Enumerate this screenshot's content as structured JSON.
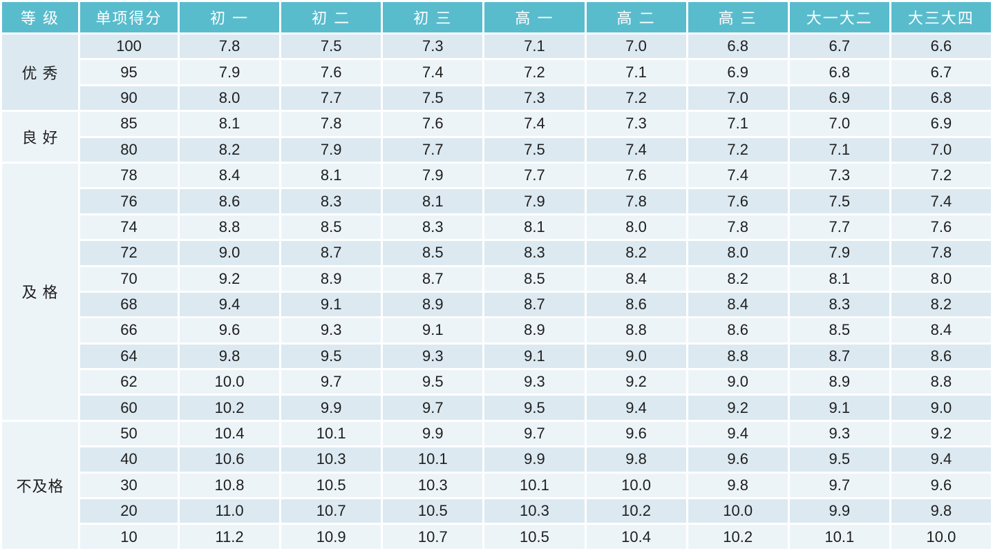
{
  "colors": {
    "header_bg": "#58BCCD",
    "header_text": "#FFFFFF",
    "band_dark": "#DCE9F1",
    "band_light": "#EDF4F8",
    "cell_text": "#1E1E1E"
  },
  "chart_data": {
    "type": "table",
    "columns": [
      "等 级",
      "单项得分",
      "初 一",
      "初 二",
      "初 三",
      "高 一",
      "高 二",
      "高 三",
      "大一大二",
      "大三大四"
    ],
    "groups": [
      {
        "grade": "优 秀",
        "rows": [
          {
            "score": "100",
            "times": [
              "7.8",
              "7.5",
              "7.3",
              "7.1",
              "7.0",
              "6.8",
              "6.7",
              "6.6"
            ]
          },
          {
            "score": "95",
            "times": [
              "7.9",
              "7.6",
              "7.4",
              "7.2",
              "7.1",
              "6.9",
              "6.8",
              "6.7"
            ]
          },
          {
            "score": "90",
            "times": [
              "8.0",
              "7.7",
              "7.5",
              "7.3",
              "7.2",
              "7.0",
              "6.9",
              "6.8"
            ]
          }
        ]
      },
      {
        "grade": "良 好",
        "rows": [
          {
            "score": "85",
            "times": [
              "8.1",
              "7.8",
              "7.6",
              "7.4",
              "7.3",
              "7.1",
              "7.0",
              "6.9"
            ]
          },
          {
            "score": "80",
            "times": [
              "8.2",
              "7.9",
              "7.7",
              "7.5",
              "7.4",
              "7.2",
              "7.1",
              "7.0"
            ]
          }
        ]
      },
      {
        "grade": "及 格",
        "rows": [
          {
            "score": "78",
            "times": [
              "8.4",
              "8.1",
              "7.9",
              "7.7",
              "7.6",
              "7.4",
              "7.3",
              "7.2"
            ]
          },
          {
            "score": "76",
            "times": [
              "8.6",
              "8.3",
              "8.1",
              "7.9",
              "7.8",
              "7.6",
              "7.5",
              "7.4"
            ]
          },
          {
            "score": "74",
            "times": [
              "8.8",
              "8.5",
              "8.3",
              "8.1",
              "8.0",
              "7.8",
              "7.7",
              "7.6"
            ]
          },
          {
            "score": "72",
            "times": [
              "9.0",
              "8.7",
              "8.5",
              "8.3",
              "8.2",
              "8.0",
              "7.9",
              "7.8"
            ]
          },
          {
            "score": "70",
            "times": [
              "9.2",
              "8.9",
              "8.7",
              "8.5",
              "8.4",
              "8.2",
              "8.1",
              "8.0"
            ]
          },
          {
            "score": "68",
            "times": [
              "9.4",
              "9.1",
              "8.9",
              "8.7",
              "8.6",
              "8.4",
              "8.3",
              "8.2"
            ]
          },
          {
            "score": "66",
            "times": [
              "9.6",
              "9.3",
              "9.1",
              "8.9",
              "8.8",
              "8.6",
              "8.5",
              "8.4"
            ]
          },
          {
            "score": "64",
            "times": [
              "9.8",
              "9.5",
              "9.3",
              "9.1",
              "9.0",
              "8.8",
              "8.7",
              "8.6"
            ]
          },
          {
            "score": "62",
            "times": [
              "10.0",
              "9.7",
              "9.5",
              "9.3",
              "9.2",
              "9.0",
              "8.9",
              "8.8"
            ]
          },
          {
            "score": "60",
            "times": [
              "10.2",
              "9.9",
              "9.7",
              "9.5",
              "9.4",
              "9.2",
              "9.1",
              "9.0"
            ]
          }
        ]
      },
      {
        "grade": "不及格",
        "rows": [
          {
            "score": "50",
            "times": [
              "10.4",
              "10.1",
              "9.9",
              "9.7",
              "9.6",
              "9.4",
              "9.3",
              "9.2"
            ]
          },
          {
            "score": "40",
            "times": [
              "10.6",
              "10.3",
              "10.1",
              "9.9",
              "9.8",
              "9.6",
              "9.5",
              "9.4"
            ]
          },
          {
            "score": "30",
            "times": [
              "10.8",
              "10.5",
              "10.3",
              "10.1",
              "10.0",
              "9.8",
              "9.7",
              "9.6"
            ]
          },
          {
            "score": "20",
            "times": [
              "11.0",
              "10.7",
              "10.5",
              "10.3",
              "10.2",
              "10.0",
              "9.9",
              "9.8"
            ]
          },
          {
            "score": "10",
            "times": [
              "11.2",
              "10.9",
              "10.7",
              "10.5",
              "10.4",
              "10.2",
              "10.1",
              "10.0"
            ]
          }
        ]
      }
    ]
  }
}
